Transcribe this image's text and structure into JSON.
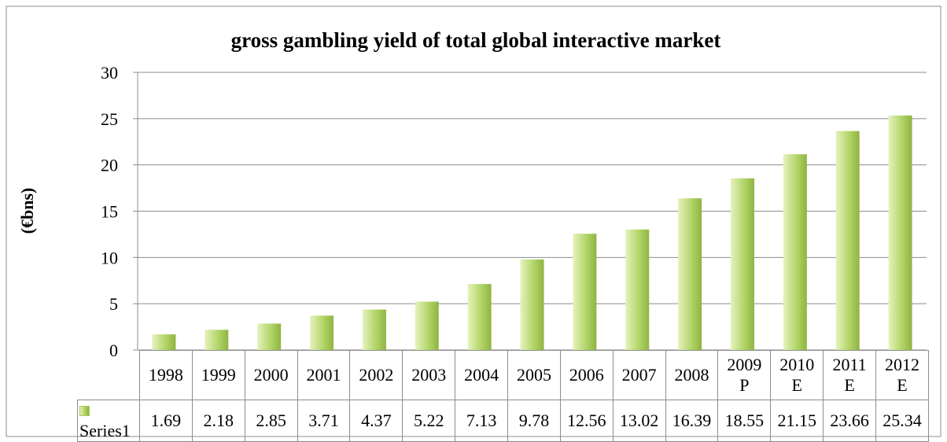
{
  "chart_data": {
    "type": "bar",
    "title": "gross gambling yield of total global interactive market",
    "y_label": "(€bns)",
    "categories": [
      "1998",
      "1999",
      "2000",
      "2001",
      "2002",
      "2003",
      "2004",
      "2005",
      "2006",
      "2007",
      "2008",
      "2009 P",
      "2010 E",
      "2011 E",
      "2012 E"
    ],
    "series": [
      {
        "name": "Series1",
        "color": "#a9cf5a",
        "values": [
          1.69,
          2.18,
          2.85,
          3.71,
          4.37,
          5.22,
          7.13,
          9.78,
          12.56,
          13.02,
          16.39,
          18.55,
          21.15,
          23.66,
          25.34
        ]
      }
    ],
    "ylim": [
      0,
      30
    ],
    "yticks": [
      0,
      5,
      10,
      15,
      20,
      25,
      30
    ],
    "grid": true
  }
}
